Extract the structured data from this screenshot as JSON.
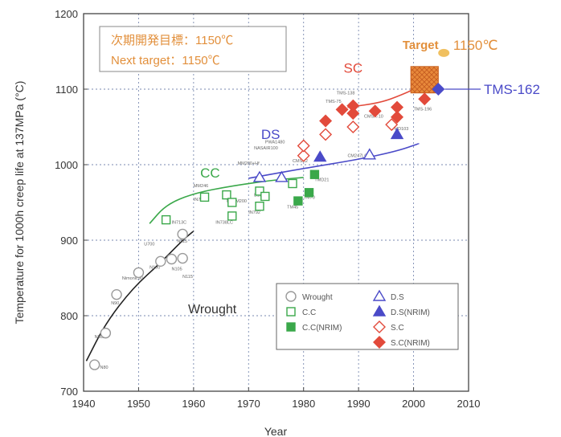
{
  "chart_data": {
    "type": "scatter",
    "xlabel": "Year",
    "ylabel": "Temperature for 1000h creep life at 137MPa (°C)",
    "xlim": [
      1940,
      2010
    ],
    "ylim": [
      700,
      1200
    ],
    "xticks": [
      "1940",
      "1950",
      "1960",
      "1970",
      "1980",
      "1990",
      "2000",
      "2010"
    ],
    "yticks": [
      "700",
      "800",
      "900",
      "1000",
      "1100",
      "1200"
    ],
    "grid": "dotted, major ticks",
    "annotation_box": {
      "line1": "次期開発目標：1150℃",
      "line2": "Next target：1150℃"
    },
    "target": {
      "label": "Target",
      "value_label": "1150℃",
      "x": [
        1999.5,
        2004.5
      ],
      "y": [
        1095,
        1130
      ]
    },
    "tms162": {
      "label": "TMS-162",
      "x": 2004.5,
      "y": 1100
    },
    "group_labels": [
      {
        "text": "SC",
        "x": 1989,
        "y": 1122,
        "color": "#e24a3b"
      },
      {
        "text": "DS",
        "x": 1974,
        "y": 1034,
        "color": "#4a4ac8"
      },
      {
        "text": "CC",
        "x": 1963,
        "y": 983,
        "color": "#3aa84a"
      },
      {
        "text": "Wrought",
        "x": 1959,
        "y": 803,
        "color": "#333333"
      }
    ],
    "legend": {
      "position": "bottom-right",
      "entries": [
        {
          "label": "Wrought",
          "marker": "circle-open",
          "color": "#999999"
        },
        {
          "label": "C.C",
          "marker": "square-open",
          "color": "#3aa84a"
        },
        {
          "label": "C.C(NRIM)",
          "marker": "square-filled",
          "color": "#3aa84a"
        },
        {
          "label": "D.S",
          "marker": "triangle-open",
          "color": "#4a4ac8"
        },
        {
          "label": "D.S(NRIM)",
          "marker": "triangle-filled",
          "color": "#4a4ac8"
        },
        {
          "label": "S.C",
          "marker": "diamond-open",
          "color": "#e24a3b"
        },
        {
          "label": "S.C(NRIM)",
          "marker": "diamond-filled",
          "color": "#e24a3b"
        }
      ]
    },
    "series": [
      {
        "name": "Wrought",
        "marker": "circle-open",
        "color": "#999999",
        "points": [
          [
            1942,
            735
          ],
          [
            1944,
            777
          ],
          [
            1946,
            828
          ],
          [
            1950,
            857
          ],
          [
            1954,
            872
          ],
          [
            1956,
            875
          ],
          [
            1958,
            876
          ],
          [
            1958,
            908
          ]
        ]
      },
      {
        "name": "C.C",
        "marker": "square-open",
        "color": "#3aa84a",
        "points": [
          [
            1955,
            927
          ],
          [
            1962,
            957
          ],
          [
            1966,
            960
          ],
          [
            1967,
            932
          ],
          [
            1967,
            950
          ],
          [
            1972,
            945
          ],
          [
            1972,
            965
          ],
          [
            1973,
            958
          ],
          [
            1978,
            975
          ]
        ]
      },
      {
        "name": "C.C(NRIM)",
        "marker": "square-filled",
        "color": "#3aa84a",
        "points": [
          [
            1979,
            952
          ],
          [
            1981,
            963
          ],
          [
            1982,
            987
          ]
        ]
      },
      {
        "name": "D.S",
        "marker": "triangle-open",
        "color": "#4a4ac8",
        "points": [
          [
            1972,
            983
          ],
          [
            1976,
            983
          ],
          [
            1992,
            1013
          ]
        ]
      },
      {
        "name": "D.S(NRIM)",
        "marker": "triangle-filled",
        "color": "#4a4ac8",
        "points": [
          [
            1983,
            1010
          ],
          [
            1997,
            1040
          ]
        ]
      },
      {
        "name": "S.C",
        "marker": "diamond-open",
        "color": "#e24a3b",
        "points": [
          [
            1980,
            1012
          ],
          [
            1980,
            1025
          ],
          [
            1984,
            1040
          ],
          [
            1989,
            1050
          ],
          [
            1996,
            1053
          ]
        ]
      },
      {
        "name": "S.C(NRIM)",
        "marker": "diamond-filled",
        "color": "#e24a3b",
        "points": [
          [
            1984,
            1058
          ],
          [
            1987,
            1073
          ],
          [
            1989,
            1068
          ],
          [
            1989,
            1078
          ],
          [
            1993,
            1071
          ],
          [
            1997,
            1063
          ],
          [
            1997,
            1076
          ],
          [
            2002,
            1087
          ]
        ]
      }
    ],
    "alloy_labels": [
      [
        "N80",
        1943,
        730
      ],
      [
        "N80A",
        1942,
        770
      ],
      [
        "N90",
        1945,
        815
      ],
      [
        "Nimonic90",
        1947,
        848
      ],
      [
        "N100",
        1952,
        862
      ],
      [
        "N105",
        1956,
        860
      ],
      [
        "N115",
        1958,
        850
      ],
      [
        "U700",
        1951,
        893
      ],
      [
        "N115",
        1957,
        897
      ],
      [
        "IN713C",
        1956,
        922
      ],
      [
        "IN738",
        1960,
        952
      ],
      [
        "MM246",
        1960,
        970
      ],
      [
        "Mar-M200",
        1966,
        950
      ],
      [
        "IN792",
        1970,
        935
      ],
      [
        "B1900",
        1971,
        958
      ],
      [
        "IN738LC",
        1964,
        922
      ],
      [
        "TM45",
        1977,
        942
      ],
      [
        "TM70",
        1980,
        955
      ],
      [
        "TMD21",
        1982,
        978
      ],
      [
        "MM200+Hf",
        1968,
        1000
      ],
      [
        "NASAIR100",
        1971,
        1020
      ],
      [
        "PWA1480",
        1973,
        1028
      ],
      [
        "CMSX2",
        1978,
        1003
      ],
      [
        "TMS-75",
        1984,
        1082
      ],
      [
        "TMS-138",
        1986,
        1093
      ],
      [
        "TMD103",
        1996,
        1046
      ],
      [
        "CMSX-10",
        1991,
        1062
      ],
      [
        "CM247LC",
        1988,
        1010
      ],
      [
        "TMS-196",
        2000,
        1072
      ]
    ],
    "curves": [
      {
        "name": "Wrought",
        "color": "#222222",
        "points": [
          [
            1940.5,
            740
          ],
          [
            1944,
            790
          ],
          [
            1949,
            837
          ],
          [
            1954,
            870
          ],
          [
            1958,
            900
          ],
          [
            1960,
            912
          ]
        ]
      },
      {
        "name": "CC",
        "color": "#3aa84a",
        "points": [
          [
            1952,
            922
          ],
          [
            1955,
            947
          ],
          [
            1960,
            962
          ],
          [
            1967,
            972
          ],
          [
            1975,
            980
          ],
          [
            1980,
            983
          ]
        ]
      },
      {
        "name": "DS",
        "color": "#4a4ac8",
        "points": [
          [
            1970,
            982
          ],
          [
            1980,
            995
          ],
          [
            1990,
            1007
          ],
          [
            1997,
            1018
          ],
          [
            2001,
            1028
          ]
        ]
      },
      {
        "name": "SC",
        "color": "#e24a3b",
        "points": [
          [
            1988,
            1076
          ],
          [
            1994,
            1082
          ],
          [
            1998,
            1093
          ],
          [
            2001,
            1103
          ],
          [
            2002,
            1110
          ]
        ]
      }
    ]
  }
}
